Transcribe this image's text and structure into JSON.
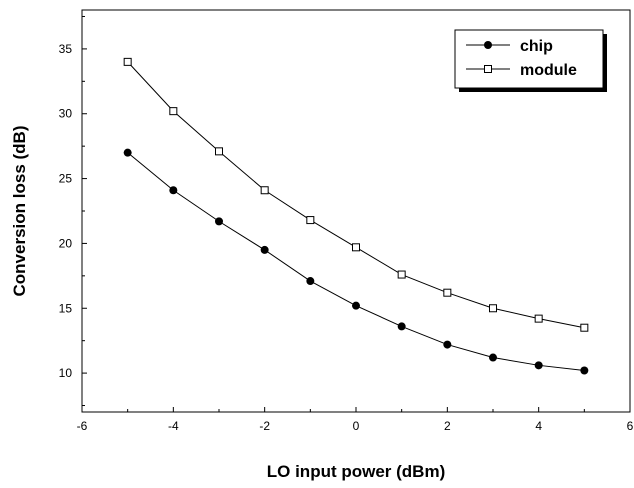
{
  "chart_data": {
    "type": "line",
    "title": "",
    "xlabel": "LO input power (dBm)",
    "ylabel": "Conversion loss (dB)",
    "xlim": [
      -6,
      6
    ],
    "ylim": [
      7,
      38
    ],
    "x_ticks": [
      -6,
      -4,
      -2,
      0,
      2,
      4,
      6
    ],
    "y_ticks": [
      10,
      15,
      20,
      25,
      30,
      35
    ],
    "grid": false,
    "legend_position": "top-right",
    "x": [
      -5,
      -4,
      -3,
      -2,
      -1,
      0,
      1,
      2,
      3,
      4,
      5
    ],
    "series": [
      {
        "name": "chip",
        "marker": "filled-circle",
        "color": "#000000",
        "values": [
          27.0,
          24.1,
          21.7,
          19.5,
          17.1,
          15.2,
          13.6,
          12.2,
          11.2,
          10.6,
          10.2
        ]
      },
      {
        "name": "module",
        "marker": "open-square",
        "color": "#000000",
        "values": [
          34.0,
          30.2,
          27.1,
          24.1,
          21.8,
          19.7,
          17.6,
          16.2,
          15.0,
          14.2,
          13.5
        ]
      }
    ]
  }
}
